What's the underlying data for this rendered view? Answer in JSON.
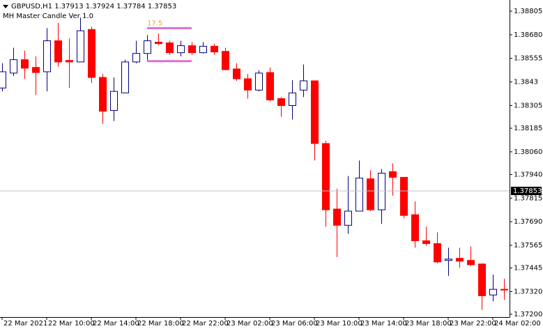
{
  "chart_data": {
    "type": "candlestick",
    "title": "GBPUSD,H1  1.37913 1.37924 1.37784 1.37853",
    "subtitle": "MH Master Candle Ver 1.0",
    "categories": [
      "22 Mar 2021",
      null,
      null,
      null,
      "22 Mar 10:00",
      null,
      null,
      null,
      "22 Mar 14:00",
      null,
      null,
      null,
      "22 Mar 18:00",
      null,
      null,
      null,
      "22 Mar 22:00",
      null,
      null,
      null,
      "23 Mar 02:00",
      null,
      null,
      null,
      "23 Mar 06:00",
      null,
      null,
      null,
      "23 Mar 10:00",
      null,
      null,
      null,
      "23 Mar 14:00",
      null,
      null,
      null,
      "23 Mar 18:00",
      null,
      null,
      null,
      "23 Mar 22:00",
      null,
      null,
      null,
      "24 Mar 02:00",
      null
    ],
    "open": [
      1.38398,
      1.38477,
      1.38548,
      1.38507,
      1.38484,
      1.38648,
      1.38544,
      1.38536,
      1.38708,
      1.38454,
      1.38279,
      1.38372,
      1.38536,
      1.38581,
      1.38641,
      1.38637,
      1.38585,
      1.38622,
      1.38585,
      1.38619,
      1.38592,
      1.38499,
      1.38447,
      1.38387,
      1.3848,
      1.38342,
      1.38305,
      1.38387,
      1.38436,
      1.38104,
      1.37757,
      1.37671,
      1.37746,
      1.37917,
      1.37753,
      1.37955,
      1.37925,
      1.37727,
      1.37589,
      1.37574,
      1.37485,
      1.37496,
      1.37485,
      1.37466,
      1.37302,
      1.37332
    ],
    "high": [
      1.38529,
      1.38611,
      1.38596,
      1.38566,
      1.38715,
      1.38742,
      1.3866,
      1.38771,
      1.38723,
      1.38473,
      1.38454,
      1.38548,
      1.38648,
      1.38678,
      1.38686,
      1.38648,
      1.38648,
      1.38641,
      1.38641,
      1.38633,
      1.38611,
      1.38529,
      1.38473,
      1.38492,
      1.38507,
      1.3835,
      1.38439,
      1.38522,
      1.38436,
      1.38119,
      1.37865,
      1.37932,
      1.38014,
      1.37962,
      1.37969,
      1.37999,
      1.37925,
      1.37798,
      1.37664,
      1.37634,
      1.37552,
      1.37552,
      1.37559,
      1.3747,
      1.3741,
      1.37388
    ],
    "low": [
      1.3838,
      1.38462,
      1.38447,
      1.38361,
      1.3838,
      1.3851,
      1.38398,
      1.38536,
      1.38425,
      1.38208,
      1.38223,
      1.38372,
      1.38529,
      1.38536,
      1.38626,
      1.38574,
      1.38566,
      1.38574,
      1.38581,
      1.38574,
      1.38492,
      1.38436,
      1.38342,
      1.3838,
      1.38327,
      1.38245,
      1.38231,
      1.3835,
      1.38014,
      1.37664,
      1.37503,
      1.37626,
      1.37746,
      1.37746,
      1.37678,
      1.37828,
      1.37708,
      1.37552,
      1.37563,
      1.3747,
      1.37403,
      1.37447,
      1.37455,
      1.37223,
      1.37268,
      1.37276
    ],
    "close": [
      1.38484,
      1.38548,
      1.38503,
      1.3848,
      1.38648,
      1.38536,
      1.38536,
      1.38701,
      1.38454,
      1.38275,
      1.3838,
      1.38536,
      1.38581,
      1.38648,
      1.38633,
      1.38585,
      1.38622,
      1.38585,
      1.38619,
      1.38589,
      1.38495,
      1.38447,
      1.38387,
      1.38477,
      1.38335,
      1.38305,
      1.38372,
      1.38436,
      1.38104,
      1.37753,
      1.37671,
      1.37746,
      1.37921,
      1.37753,
      1.37947,
      1.37925,
      1.37723,
      1.37589,
      1.37574,
      1.37477,
      1.37492,
      1.37481,
      1.37462,
      1.37298,
      1.37332,
      1.37328
    ],
    "up_color": "#000080",
    "down_color": "#ff0000",
    "ylim": [
      1.37185,
      1.38864
    ],
    "yticks": [
      1.38805,
      {
        "value": 1.3868,
        "label": "1.38680"
      },
      1.38555,
      1.3843,
      1.38305,
      1.38185,
      {
        "value": 1.3806,
        "label": "1.38060"
      },
      {
        "value": 1.3794,
        "label": "1.37940"
      },
      1.37815,
      {
        "value": 1.3769,
        "label": "1.37690"
      },
      1.37565,
      1.37445,
      {
        "value": 1.3732,
        "label": "1.37320"
      },
      {
        "value": 1.372,
        "label": "1.37200"
      }
    ],
    "current_price": 1.37853,
    "master_candle": {
      "label": "17.5",
      "high": 1.38715,
      "low": 1.3854,
      "color": "#da70d6"
    }
  }
}
